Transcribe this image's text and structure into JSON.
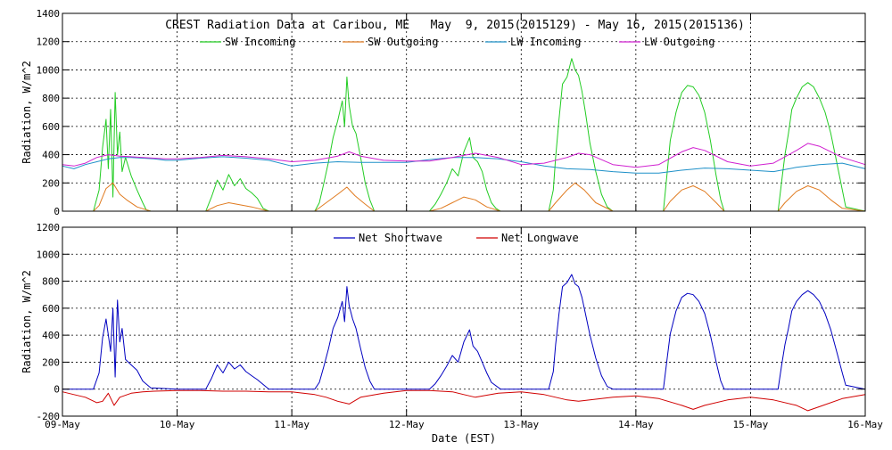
{
  "chart_data": [
    {
      "type": "line",
      "title": "CREST Radiation Data at Caribou, ME   May  9, 2015(2015129) - May 16, 2015(2015136)",
      "xlabel": "",
      "ylabel": "Radiation, W/m^2",
      "xlim": [
        0,
        7
      ],
      "ylim": [
        0,
        1400
      ],
      "yticks": [
        0,
        200,
        400,
        600,
        800,
        1000,
        1200,
        1400
      ],
      "ytick_labels": [
        "0",
        "200",
        "400",
        "600",
        "800",
        "1000",
        "1200",
        "1400"
      ],
      "xticks": [
        0,
        1,
        2,
        3,
        4,
        5,
        6,
        7
      ],
      "xtick_labels": [],
      "grid": true,
      "legend_position": "top",
      "series": [
        {
          "name": "SW Incoming",
          "color": "#22cc22",
          "x": [
            0,
            0.27,
            0.32,
            0.35,
            0.38,
            0.4,
            0.42,
            0.44,
            0.46,
            0.48,
            0.5,
            0.52,
            0.55,
            0.6,
            0.65,
            0.7,
            0.73,
            0.77,
            1,
            1.25,
            1.3,
            1.35,
            1.4,
            1.45,
            1.5,
            1.55,
            1.6,
            1.65,
            1.7,
            1.75,
            1.8,
            2,
            2.2,
            2.24,
            2.28,
            2.32,
            2.36,
            2.4,
            2.44,
            2.46,
            2.48,
            2.5,
            2.53,
            2.56,
            2.6,
            2.64,
            2.68,
            2.72,
            3,
            3.2,
            3.25,
            3.3,
            3.35,
            3.4,
            3.45,
            3.5,
            3.55,
            3.58,
            3.62,
            3.66,
            3.7,
            3.74,
            3.78,
            3.82,
            4.24,
            4.28,
            4.3,
            4.33,
            4.36,
            4.4,
            4.44,
            4.47,
            4.5,
            4.53,
            4.56,
            4.6,
            4.65,
            4.7,
            4.75,
            4.8,
            5.24,
            5.27,
            5.3,
            5.35,
            5.4,
            5.45,
            5.5,
            5.55,
            5.6,
            5.65,
            5.7,
            5.74,
            5.77,
            6.24,
            6.27,
            6.3,
            6.33,
            6.36,
            6.4,
            6.45,
            6.5,
            6.55,
            6.6,
            6.65,
            6.7,
            6.75,
            6.8,
            6.83,
            7
          ],
          "y": [
            0,
            0,
            150,
            450,
            650,
            300,
            720,
            100,
            840,
            400,
            560,
            280,
            380,
            250,
            150,
            60,
            10,
            0,
            0,
            0,
            100,
            220,
            150,
            260,
            180,
            230,
            160,
            130,
            90,
            20,
            0,
            0,
            0,
            60,
            200,
            350,
            520,
            640,
            780,
            600,
            950,
            750,
            600,
            550,
            380,
            200,
            80,
            0,
            0,
            0,
            50,
            120,
            200,
            300,
            250,
            420,
            520,
            380,
            350,
            280,
            150,
            60,
            20,
            0,
            0,
            150,
            380,
            650,
            900,
            950,
            1080,
            1000,
            960,
            850,
            700,
            480,
            280,
            120,
            30,
            0,
            0,
            250,
            500,
            700,
            840,
            890,
            880,
            820,
            700,
            500,
            250,
            80,
            0,
            0,
            200,
            400,
            550,
            720,
            800,
            880,
            910,
            880,
            800,
            700,
            550,
            350,
            150,
            30,
            0
          ],
          "points_hidden": false
        },
        {
          "name": "SW Outgoing",
          "color": "#e07b20",
          "x": [
            0,
            0.27,
            0.32,
            0.38,
            0.44,
            0.5,
            0.56,
            0.65,
            0.77,
            1,
            1.25,
            1.35,
            1.45,
            1.55,
            1.65,
            1.8,
            2,
            2.2,
            2.3,
            2.4,
            2.48,
            2.55,
            2.64,
            2.72,
            3,
            3.2,
            3.3,
            3.4,
            3.5,
            3.6,
            3.7,
            3.82,
            4.24,
            4.3,
            4.4,
            4.47,
            4.55,
            4.65,
            4.8,
            5.24,
            5.3,
            5.4,
            5.5,
            5.6,
            5.7,
            5.77,
            6.24,
            6.3,
            6.4,
            6.5,
            6.6,
            6.7,
            6.8,
            7
          ],
          "y": [
            0,
            0,
            40,
            160,
            200,
            120,
            80,
            30,
            0,
            0,
            0,
            40,
            60,
            45,
            30,
            0,
            0,
            0,
            60,
            120,
            170,
            110,
            50,
            0,
            0,
            0,
            20,
            60,
            100,
            80,
            30,
            0,
            0,
            60,
            150,
            200,
            150,
            60,
            0,
            0,
            70,
            150,
            180,
            140,
            60,
            0,
            0,
            60,
            140,
            180,
            150,
            80,
            20,
            0
          ]
        },
        {
          "name": "LW Incoming",
          "color": "#1e90c8",
          "x": [
            0,
            0.1,
            0.2,
            0.3,
            0.4,
            0.5,
            0.6,
            0.7,
            0.8,
            0.9,
            1,
            1.2,
            1.4,
            1.6,
            1.8,
            2,
            2.2,
            2.4,
            2.6,
            2.8,
            3,
            3.2,
            3.4,
            3.6,
            3.8,
            4,
            4.2,
            4.4,
            4.6,
            4.8,
            5,
            5.2,
            5.4,
            5.6,
            5.8,
            6,
            6.2,
            6.4,
            6.6,
            6.8,
            7
          ],
          "y": [
            320,
            300,
            330,
            350,
            370,
            380,
            380,
            375,
            370,
            360,
            360,
            375,
            385,
            375,
            360,
            320,
            340,
            350,
            345,
            345,
            345,
            365,
            380,
            380,
            370,
            350,
            320,
            300,
            295,
            280,
            270,
            270,
            290,
            305,
            300,
            290,
            280,
            310,
            330,
            340,
            300
          ]
        },
        {
          "name": "LW Outgoing",
          "color": "#d020d0",
          "x": [
            0,
            0.1,
            0.2,
            0.3,
            0.4,
            0.5,
            0.6,
            0.7,
            0.8,
            0.9,
            1,
            1.2,
            1.4,
            1.6,
            1.8,
            2,
            2.2,
            2.4,
            2.5,
            2.6,
            2.8,
            3,
            3.2,
            3.4,
            3.6,
            3.8,
            4,
            4.2,
            4.4,
            4.5,
            4.6,
            4.8,
            5,
            5.2,
            5.4,
            5.5,
            5.6,
            5.8,
            6,
            6.2,
            6.4,
            6.5,
            6.6,
            6.8,
            7
          ],
          "y": [
            330,
            320,
            340,
            380,
            400,
            390,
            385,
            380,
            375,
            370,
            370,
            380,
            395,
            385,
            370,
            350,
            360,
            390,
            420,
            390,
            360,
            355,
            355,
            380,
            410,
            380,
            330,
            340,
            380,
            410,
            400,
            330,
            310,
            330,
            420,
            450,
            430,
            350,
            320,
            340,
            430,
            480,
            460,
            380,
            330
          ]
        }
      ]
    },
    {
      "type": "line",
      "title": "",
      "xlabel": "Date (EST)",
      "ylabel": "Radiation, W/m^2",
      "xlim": [
        0,
        7
      ],
      "ylim": [
        -200,
        1200
      ],
      "yticks": [
        -200,
        0,
        200,
        400,
        600,
        800,
        1000,
        1200
      ],
      "ytick_labels": [
        "-200",
        "0",
        "200",
        "400",
        "600",
        "800",
        "1000",
        "1200"
      ],
      "xticks": [
        0,
        1,
        2,
        3,
        4,
        5,
        6,
        7
      ],
      "xtick_labels": [
        "09-May",
        "10-May",
        "11-May",
        "12-May",
        "13-May",
        "14-May",
        "15-May",
        "16-May"
      ],
      "grid": true,
      "legend_position": "top",
      "series": [
        {
          "name": "Net Shortwave",
          "color": "#0000c0",
          "x": [
            0,
            0.27,
            0.32,
            0.35,
            0.38,
            0.42,
            0.44,
            0.46,
            0.48,
            0.5,
            0.52,
            0.55,
            0.6,
            0.65,
            0.7,
            0.77,
            1,
            1.25,
            1.3,
            1.35,
            1.4,
            1.45,
            1.5,
            1.55,
            1.6,
            1.65,
            1.7,
            1.8,
            2,
            2.2,
            2.24,
            2.28,
            2.32,
            2.36,
            2.4,
            2.44,
            2.46,
            2.48,
            2.5,
            2.53,
            2.56,
            2.6,
            2.64,
            2.68,
            2.72,
            3,
            3.2,
            3.25,
            3.3,
            3.35,
            3.4,
            3.45,
            3.5,
            3.55,
            3.58,
            3.62,
            3.66,
            3.7,
            3.74,
            3.82,
            4.24,
            4.28,
            4.3,
            4.33,
            4.36,
            4.4,
            4.44,
            4.47,
            4.5,
            4.53,
            4.56,
            4.6,
            4.65,
            4.7,
            4.75,
            4.8,
            5.24,
            5.27,
            5.3,
            5.35,
            5.4,
            5.45,
            5.5,
            5.55,
            5.6,
            5.65,
            5.7,
            5.74,
            5.77,
            6.24,
            6.27,
            6.3,
            6.33,
            6.36,
            6.4,
            6.45,
            6.5,
            6.55,
            6.6,
            6.65,
            6.7,
            6.75,
            6.8,
            6.83,
            7
          ],
          "y": [
            0,
            0,
            120,
            380,
            520,
            280,
            600,
            90,
            660,
            350,
            450,
            220,
            180,
            140,
            60,
            10,
            0,
            0,
            80,
            180,
            120,
            200,
            150,
            180,
            130,
            100,
            70,
            0,
            0,
            0,
            50,
            170,
            300,
            450,
            530,
            650,
            500,
            760,
            620,
            520,
            450,
            300,
            160,
            60,
            0,
            0,
            0,
            40,
            100,
            170,
            250,
            200,
            350,
            440,
            320,
            280,
            200,
            120,
            50,
            0,
            0,
            130,
            330,
            560,
            760,
            790,
            850,
            780,
            760,
            680,
            560,
            400,
            230,
            100,
            20,
            0,
            0,
            210,
            410,
            580,
            680,
            710,
            700,
            650,
            560,
            400,
            200,
            60,
            0,
            0,
            170,
            330,
            450,
            580,
            650,
            700,
            730,
            700,
            650,
            560,
            440,
            280,
            120,
            30,
            0
          ]
        },
        {
          "name": "Net Longwave",
          "color": "#d00000",
          "x": [
            0,
            0.1,
            0.2,
            0.3,
            0.35,
            0.4,
            0.45,
            0.5,
            0.6,
            0.7,
            0.8,
            1,
            1.2,
            1.4,
            1.6,
            1.8,
            2,
            2.2,
            2.3,
            2.4,
            2.5,
            2.6,
            2.8,
            3,
            3.2,
            3.4,
            3.5,
            3.6,
            3.8,
            4,
            4.2,
            4.4,
            4.5,
            4.6,
            4.8,
            5,
            5.2,
            5.4,
            5.5,
            5.6,
            5.8,
            6,
            6.2,
            6.4,
            6.5,
            6.6,
            6.8,
            7
          ],
          "y": [
            -20,
            -40,
            -60,
            -100,
            -90,
            -30,
            -120,
            -60,
            -30,
            -20,
            -15,
            -10,
            -10,
            -15,
            -15,
            -20,
            -20,
            -40,
            -60,
            -90,
            -110,
            -60,
            -30,
            -10,
            -10,
            -20,
            -40,
            -60,
            -30,
            -20,
            -40,
            -80,
            -90,
            -80,
            -60,
            -50,
            -70,
            -120,
            -150,
            -120,
            -80,
            -60,
            -80,
            -120,
            -160,
            -130,
            -70,
            -40
          ]
        }
      ]
    }
  ]
}
